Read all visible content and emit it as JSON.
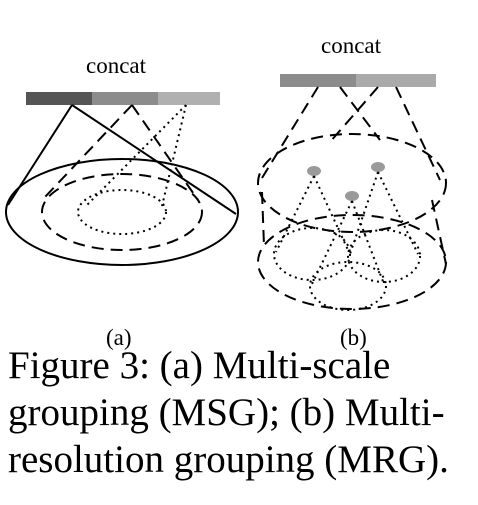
{
  "figure": {
    "panel_a": {
      "concat_label": "concat",
      "sublabel": "(a)",
      "bar_colors": [
        "#555555",
        "#8c8c8c",
        "#b0b0b0"
      ]
    },
    "panel_b": {
      "concat_label": "concat",
      "sublabel": "(b)",
      "bar_colors": [
        "#8c8c8c",
        "#aaaaaa"
      ],
      "point_color": "#9a9a9a"
    }
  },
  "caption": {
    "line1": "Figure 3:  (a) Multi-scale",
    "line2": "grouping (MSG); (b) Multi-",
    "line3": "resolution grouping (MRG)."
  }
}
